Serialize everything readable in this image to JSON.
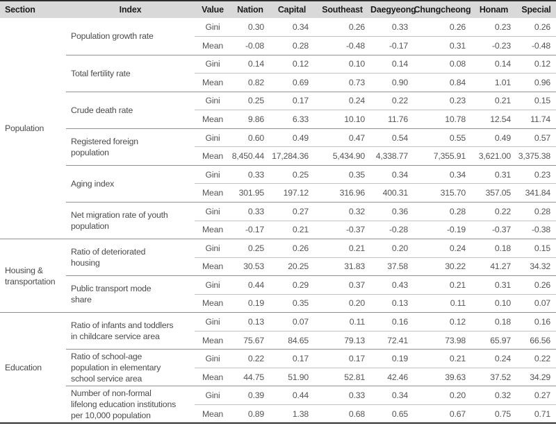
{
  "table": {
    "columns": [
      "Section",
      "Index",
      "Value",
      "Nation",
      "Capital",
      "Southeast",
      "Daegyeong",
      "Chungcheong",
      "Honam",
      "Special"
    ],
    "value_row_labels": [
      "Gini",
      "Mean"
    ],
    "header_bg_color": "#d9d9d9",
    "border_color": "#2e2e2e",
    "sections": [
      {
        "name": "Population",
        "indexes": [
          {
            "label": "Population growth rate",
            "gini": [
              "0.30",
              "0.34",
              "0.26",
              "0.33",
              "0.26",
              "0.23",
              "0.26"
            ],
            "mean": [
              "-0.08",
              "0.28",
              "-0.48",
              "-0.17",
              "0.31",
              "-0.23",
              "-0.48"
            ]
          },
          {
            "label": "Total fertility rate",
            "gini": [
              "0.14",
              "0.12",
              "0.10",
              "0.14",
              "0.08",
              "0.14",
              "0.12"
            ],
            "mean": [
              "0.82",
              "0.69",
              "0.73",
              "0.90",
              "0.84",
              "1.01",
              "0.96"
            ]
          },
          {
            "label": "Crude death rate",
            "gini": [
              "0.25",
              "0.17",
              "0.24",
              "0.22",
              "0.23",
              "0.21",
              "0.15"
            ],
            "mean": [
              "9.86",
              "6.33",
              "10.10",
              "11.76",
              "10.78",
              "12.54",
              "11.74"
            ]
          },
          {
            "label": "Registered foreign\npopulation",
            "gini": [
              "0.60",
              "0.49",
              "0.47",
              "0.54",
              "0.55",
              "0.49",
              "0.57"
            ],
            "mean": [
              "8,450.44",
              "17,284.36",
              "5,434.90",
              "4,338.77",
              "7,355.91",
              "3,621.00",
              "3,375.38"
            ]
          },
          {
            "label": "Aging index",
            "gini": [
              "0.33",
              "0.25",
              "0.35",
              "0.34",
              "0.34",
              "0.31",
              "0.23"
            ],
            "mean": [
              "301.95",
              "197.12",
              "316.96",
              "400.31",
              "315.70",
              "357.05",
              "341.84"
            ]
          },
          {
            "label": "Net migration rate of youth\npopulation",
            "gini": [
              "0.33",
              "0.27",
              "0.32",
              "0.36",
              "0.28",
              "0.22",
              "0.28"
            ],
            "mean": [
              "-0.17",
              "0.21",
              "-0.37",
              "-0.28",
              "-0.19",
              "-0.37",
              "-0.38"
            ]
          }
        ]
      },
      {
        "name": "Housing &\ntransportation",
        "indexes": [
          {
            "label": "Ratio of deteriorated\nhousing",
            "gini": [
              "0.25",
              "0.26",
              "0.21",
              "0.20",
              "0.24",
              "0.18",
              "0.15"
            ],
            "mean": [
              "30.53",
              "20.25",
              "31.83",
              "37.58",
              "30.22",
              "41.27",
              "34.32"
            ]
          },
          {
            "label": "Public transport mode\nshare",
            "gini": [
              "0.44",
              "0.29",
              "0.37",
              "0.43",
              "0.21",
              "0.31",
              "0.26"
            ],
            "mean": [
              "0.19",
              "0.35",
              "0.20",
              "0.13",
              "0.11",
              "0.10",
              "0.07"
            ]
          }
        ]
      },
      {
        "name": "Education",
        "indexes": [
          {
            "label": "Ratio of infants and toddlers\nin childcare service area",
            "gini": [
              "0.13",
              "0.07",
              "0.11",
              "0.16",
              "0.12",
              "0.18",
              "0.16"
            ],
            "mean": [
              "75.67",
              "84.65",
              "79.13",
              "72.41",
              "73.98",
              "65.97",
              "66.56"
            ]
          },
          {
            "label": "Ratio of school-age\npopulation in elementary\nschool service area",
            "gini": [
              "0.22",
              "0.17",
              "0.17",
              "0.19",
              "0.21",
              "0.24",
              "0.22"
            ],
            "mean": [
              "44.75",
              "51.90",
              "52.81",
              "42.46",
              "39.63",
              "37.52",
              "34.29"
            ]
          },
          {
            "label": "Number of non-formal\nlifelong education institutions\nper 10,000 population",
            "gini": [
              "0.39",
              "0.44",
              "0.33",
              "0.34",
              "0.20",
              "0.32",
              "0.27"
            ],
            "mean": [
              "0.89",
              "1.38",
              "0.68",
              "0.65",
              "0.67",
              "0.75",
              "0.71"
            ]
          }
        ]
      }
    ]
  }
}
